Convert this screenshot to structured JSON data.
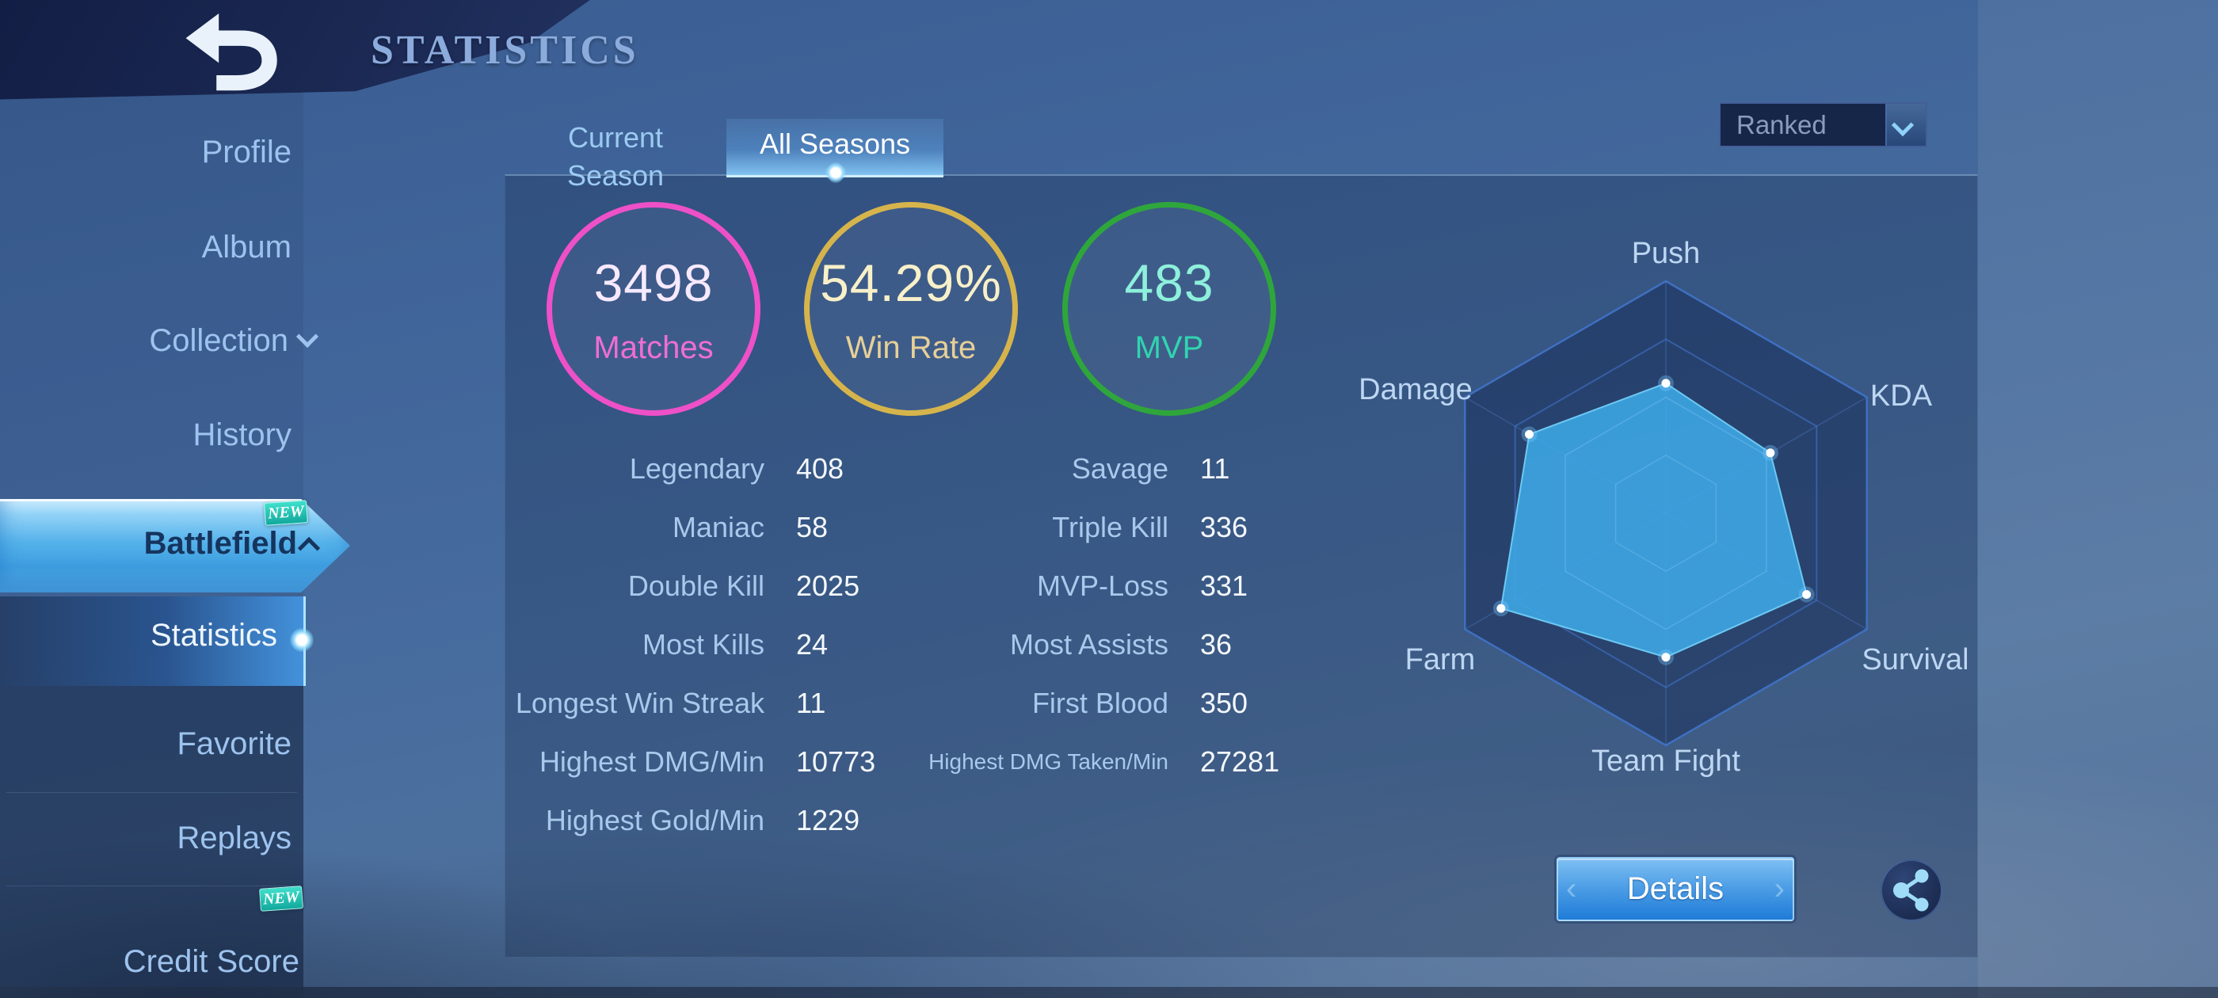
{
  "header": {
    "title": "STATISTICS"
  },
  "sidebar": {
    "items": [
      {
        "label": "Profile"
      },
      {
        "label": "Album"
      },
      {
        "label": "Collection"
      },
      {
        "label": "History"
      }
    ],
    "battlefield": {
      "label": "Battlefield",
      "badge": "NEW"
    },
    "statistics": {
      "label": "Statistics"
    },
    "lower_items": [
      {
        "label": "Favorite"
      },
      {
        "label": "Replays"
      },
      {
        "label": "Credit Score",
        "badge": "NEW"
      }
    ]
  },
  "tabs": [
    {
      "label": "Current Season",
      "active": false
    },
    {
      "label": "All Seasons",
      "active": true
    }
  ],
  "season_filter": {
    "value": "Ranked"
  },
  "summary_rings": [
    {
      "value": "3498",
      "label": "Matches",
      "ring_color": "#ee50c8",
      "value_color": "#f7e9ff",
      "label_color": "#ef6ed6"
    },
    {
      "value": "54.29%",
      "label": "Win Rate",
      "ring_color": "#d6b44c",
      "value_color": "#f8f0c9",
      "label_color": "#e6d098"
    },
    {
      "value": "483",
      "label": "MVP",
      "ring_color": "#2fa63c",
      "value_color": "#8df0dc",
      "label_color": "#30d5b0"
    }
  ],
  "stats_left": [
    {
      "label": "Legendary",
      "value": "408"
    },
    {
      "label": "Maniac",
      "value": "58"
    },
    {
      "label": "Double Kill",
      "value": "2025"
    },
    {
      "label": "Most Kills",
      "value": "24"
    },
    {
      "label": "Longest Win Streak",
      "value": "11"
    },
    {
      "label": "Highest DMG/Min",
      "value": "10773"
    },
    {
      "label": "Highest Gold/Min",
      "value": "1229"
    }
  ],
  "stats_right": [
    {
      "label": "Savage",
      "value": "11"
    },
    {
      "label": "Triple Kill",
      "value": "336"
    },
    {
      "label": "MVP-Loss",
      "value": "331"
    },
    {
      "label": "Most Assists",
      "value": "36"
    },
    {
      "label": "First Blood",
      "value": "350"
    },
    {
      "label": "Highest DMG Taken/Min",
      "value": "27281",
      "small_label": true
    }
  ],
  "chart_data": {
    "type": "radar",
    "title": "Battlefield performance radar",
    "axes": [
      "Push",
      "KDA",
      "Survival",
      "Team Fight",
      "Farm",
      "Damage"
    ],
    "values": [
      0.56,
      0.52,
      0.7,
      0.62,
      0.82,
      0.68
    ],
    "scale_max": 1,
    "grid_rings": [
      1,
      0.75,
      0.5,
      0.25
    ],
    "grid_shape": "hexagon",
    "fill_color": "#3ea9e6",
    "grid_color": "#3f6fc0",
    "legend": "none"
  },
  "actions": {
    "details_label": "Details"
  }
}
